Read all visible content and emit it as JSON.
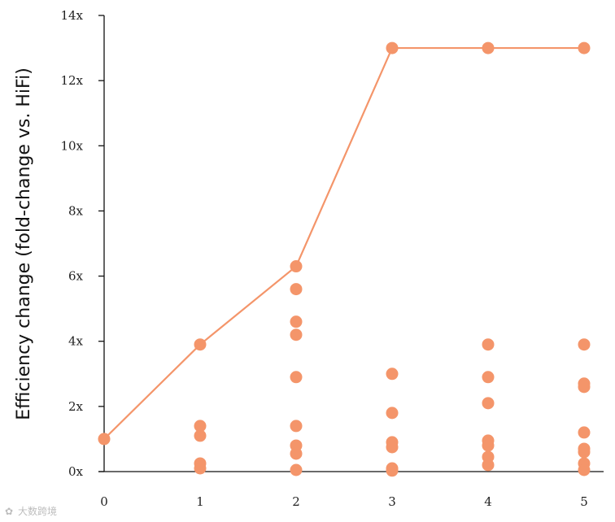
{
  "chart_data": {
    "type": "scatter",
    "title": "",
    "ylabel": "Efficiency change (fold-change vs. HiFi)",
    "xlabel": "",
    "xlim": [
      0,
      5
    ],
    "ylim": [
      0,
      14
    ],
    "xticks": [
      0,
      1,
      2,
      3,
      4,
      5
    ],
    "yticks": [
      0,
      2,
      4,
      6,
      8,
      10,
      12,
      14
    ],
    "ytick_suffix": "x",
    "grid": false,
    "legend": "none",
    "color": "#F4956A",
    "line_series": {
      "x": [
        0,
        1,
        2,
        3,
        4,
        5
      ],
      "y": [
        1.0,
        3.9,
        6.3,
        13.0,
        13.0,
        13.0
      ]
    },
    "points": [
      {
        "x": 0,
        "y": 1.0
      },
      {
        "x": 1,
        "y": 3.9
      },
      {
        "x": 1,
        "y": 1.4
      },
      {
        "x": 1,
        "y": 1.1
      },
      {
        "x": 1,
        "y": 0.25
      },
      {
        "x": 1,
        "y": 0.1
      },
      {
        "x": 2,
        "y": 6.3
      },
      {
        "x": 2,
        "y": 5.6
      },
      {
        "x": 2,
        "y": 4.6
      },
      {
        "x": 2,
        "y": 4.2
      },
      {
        "x": 2,
        "y": 2.9
      },
      {
        "x": 2,
        "y": 1.4
      },
      {
        "x": 2,
        "y": 0.8
      },
      {
        "x": 2,
        "y": 0.55
      },
      {
        "x": 2,
        "y": 0.05
      },
      {
        "x": 3,
        "y": 13.0
      },
      {
        "x": 3,
        "y": 3.0
      },
      {
        "x": 3,
        "y": 1.8
      },
      {
        "x": 3,
        "y": 0.9
      },
      {
        "x": 3,
        "y": 0.75
      },
      {
        "x": 3,
        "y": 0.1
      },
      {
        "x": 3,
        "y": 0.03
      },
      {
        "x": 4,
        "y": 13.0
      },
      {
        "x": 4,
        "y": 3.9
      },
      {
        "x": 4,
        "y": 2.9
      },
      {
        "x": 4,
        "y": 2.1
      },
      {
        "x": 4,
        "y": 0.95
      },
      {
        "x": 4,
        "y": 0.8
      },
      {
        "x": 4,
        "y": 0.45
      },
      {
        "x": 4,
        "y": 0.2
      },
      {
        "x": 5,
        "y": 13.0
      },
      {
        "x": 5,
        "y": 3.9
      },
      {
        "x": 5,
        "y": 2.7
      },
      {
        "x": 5,
        "y": 2.6
      },
      {
        "x": 5,
        "y": 1.2
      },
      {
        "x": 5,
        "y": 0.7
      },
      {
        "x": 5,
        "y": 0.6
      },
      {
        "x": 5,
        "y": 0.25
      },
      {
        "x": 5,
        "y": 0.05
      }
    ]
  },
  "watermark": {
    "text": "大数跨境"
  }
}
